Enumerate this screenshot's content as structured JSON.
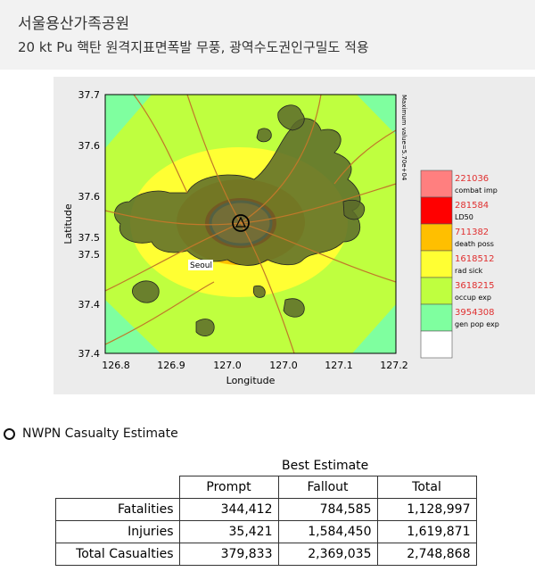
{
  "header": {
    "title": "서울용산가족공원",
    "subtitle": "20 kt Pu 핵탄 원격지표면폭발 무풍, 광역수도권인구밀도 적용"
  },
  "colors": {
    "combat_imp": "#ff7f7f",
    "ld50": "#ff0000",
    "death_poss": "#ffbf00",
    "rad_sick": "#ffff33",
    "occup_exp": "#bfff3f",
    "gen_pop_exp": "#7fff9f",
    "background": "#ffffff",
    "urban": "#5a6a2a",
    "roads": "#c0782a"
  },
  "chart_data": {
    "type": "heatmap",
    "xlabel": "Longitude",
    "ylabel": "Latitude",
    "xticks": [
      "126.8",
      "126.9",
      "127.0",
      "127.0",
      "127.1",
      "127.2"
    ],
    "yticks": [
      "37.7",
      "37.6",
      "37.6",
      "37.5",
      "37.5",
      "37.4",
      "37.4"
    ],
    "side_note": "Maximum value=5.70e+04",
    "place_label": "Seoul",
    "legend": [
      {
        "value": "221036",
        "label": "combat imp",
        "color": "#ff7f7f"
      },
      {
        "value": "281584",
        "label": "LD50",
        "color": "#ff0000"
      },
      {
        "value": "711382",
        "label": "death poss",
        "color": "#ffbf00"
      },
      {
        "value": "1618512",
        "label": "rad sick",
        "color": "#ffff33"
      },
      {
        "value": "3618215",
        "label": "occup exp",
        "color": "#bfff3f"
      },
      {
        "value": "3954308",
        "label": "gen pop exp",
        "color": "#7fff9f"
      },
      {
        "value": "",
        "label": "",
        "color": "#ffffff"
      }
    ]
  },
  "casualty": {
    "heading": "NWPN Casualty Estimate",
    "best_estimate": "Best Estimate",
    "columns": [
      "Prompt",
      "Fallout",
      "Total"
    ],
    "rows": [
      {
        "label": "Fatalities",
        "values": [
          "344,412",
          "784,585",
          "1,128,997"
        ]
      },
      {
        "label": "Injuries",
        "values": [
          "35,421",
          "1,584,450",
          "1,619,871"
        ]
      },
      {
        "label": "Total Casualties",
        "values": [
          "379,833",
          "2,369,035",
          "2,748,868"
        ]
      }
    ]
  }
}
